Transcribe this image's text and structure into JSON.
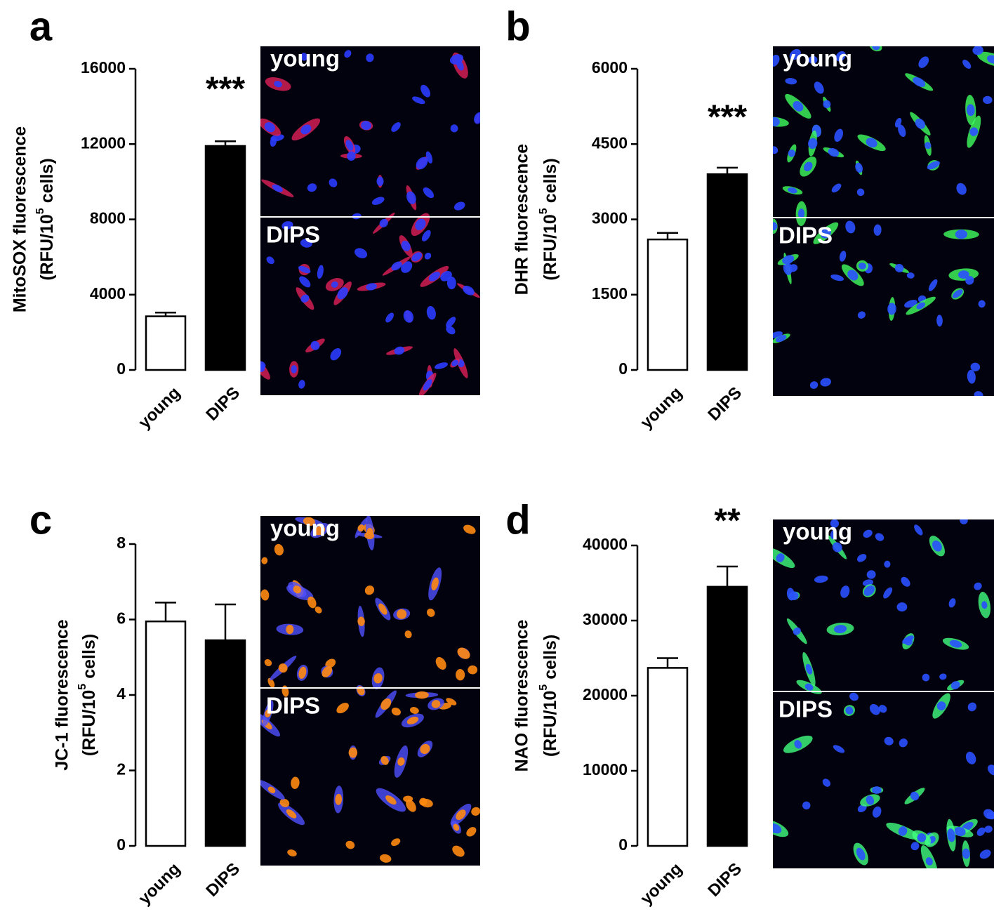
{
  "chart_data": [
    {
      "type": "bar",
      "panel": "a",
      "ylabel": "MitoSOX fluorescence",
      "ylabel_unit": [
        "(RFU/10",
        "5",
        "cells)"
      ],
      "categories": [
        "young",
        "DIPS"
      ],
      "values": [
        2850,
        11900
      ],
      "errors": [
        200,
        250
      ],
      "colors": [
        "#ffffff",
        "#000000"
      ],
      "ylim": [
        0,
        16000
      ],
      "yticks": [
        0,
        4000,
        8000,
        12000,
        16000
      ],
      "significance": "***",
      "image_labels": [
        "young",
        "DIPS"
      ]
    },
    {
      "type": "bar",
      "panel": "b",
      "ylabel": "DHR fluorescence",
      "ylabel_unit": [
        "(RFU/10",
        "5",
        "cells)"
      ],
      "categories": [
        "young",
        "DIPS"
      ],
      "values": [
        2600,
        3900
      ],
      "errors": [
        130,
        130
      ],
      "colors": [
        "#ffffff",
        "#000000"
      ],
      "ylim": [
        0,
        6000
      ],
      "yticks": [
        0,
        1500,
        3000,
        4500,
        6000
      ],
      "significance": "***",
      "image_labels": [
        "young",
        "DIPS"
      ]
    },
    {
      "type": "bar",
      "panel": "c",
      "ylabel": "JC-1 fluorescence",
      "ylabel_unit": [
        "(RFU/10",
        "5",
        "cells)"
      ],
      "categories": [
        "young",
        "DIPS"
      ],
      "values": [
        5.95,
        5.45
      ],
      "errors": [
        0.5,
        0.95
      ],
      "colors": [
        "#ffffff",
        "#000000"
      ],
      "ylim": [
        0,
        8
      ],
      "yticks": [
        0,
        2,
        4,
        6,
        8
      ],
      "image_labels": [
        "young",
        "DIPS"
      ]
    },
    {
      "type": "bar",
      "panel": "d",
      "ylabel": "NAO fluorescence",
      "ylabel_unit": [
        "(RFU/10",
        "5",
        "cells)"
      ],
      "categories": [
        "young",
        "DIPS"
      ],
      "values": [
        23700,
        34500
      ],
      "errors": [
        1300,
        2700
      ],
      "colors": [
        "#ffffff",
        "#000000"
      ],
      "ylim": [
        0,
        40000
      ],
      "yticks": [
        0,
        10000,
        20000,
        30000,
        40000
      ],
      "significance": "**",
      "image_labels": [
        "young",
        "DIPS"
      ]
    }
  ]
}
